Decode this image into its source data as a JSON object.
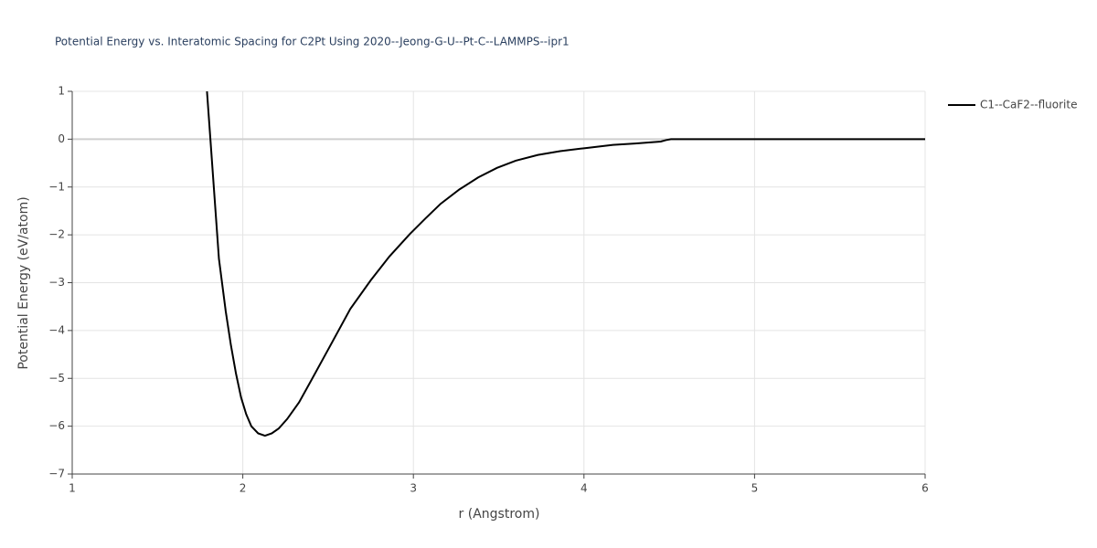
{
  "chart_data": {
    "type": "line",
    "title": "Potential Energy vs. Interatomic Spacing for C2Pt Using 2020--Jeong-G-U--Pt-C--LAMMPS--ipr1",
    "x_label": "r (Angstrom)",
    "y_label": "Potential Energy (eV/atom)",
    "x": [
      1.79,
      1.81,
      1.83,
      1.86,
      1.9,
      1.93,
      1.96,
      1.99,
      2.02,
      2.05,
      2.09,
      2.13,
      2.17,
      2.21,
      2.26,
      2.33,
      2.4,
      2.5,
      2.63,
      2.75,
      2.86,
      2.98,
      3.07,
      3.16,
      3.27,
      3.38,
      3.49,
      3.6,
      3.73,
      3.86,
      4.0,
      4.17,
      4.3,
      4.45,
      4.48,
      4.51,
      5.0,
      6.0
    ],
    "series": [
      {
        "name": "C1--CaF2--fluorite",
        "color": "#000000",
        "values": [
          1.0,
          0.0,
          -1.0,
          -2.5,
          -3.6,
          -4.3,
          -4.9,
          -5.4,
          -5.75,
          -6.0,
          -6.15,
          -6.2,
          -6.15,
          -6.05,
          -5.85,
          -5.5,
          -5.05,
          -4.4,
          -3.55,
          -2.95,
          -2.45,
          -1.98,
          -1.66,
          -1.35,
          -1.05,
          -0.8,
          -0.6,
          -0.45,
          -0.33,
          -0.25,
          -0.19,
          -0.12,
          -0.09,
          -0.05,
          -0.02,
          0,
          0,
          0
        ]
      }
    ],
    "xlim": [
      1,
      6
    ],
    "xticks": [
      1,
      2,
      3,
      4,
      5,
      6
    ],
    "ylim": [
      -7,
      1
    ],
    "yticks": [
      1,
      0,
      {
        "value": -1,
        "label": "−1"
      },
      {
        "value": -2,
        "label": "−2"
      },
      {
        "value": -3,
        "label": "−3"
      },
      {
        "value": -4,
        "label": "−4"
      },
      {
        "value": -5,
        "label": "−5"
      },
      {
        "value": -6,
        "label": "−6"
      },
      {
        "value": -7,
        "label": "−7"
      }
    ],
    "grid": true,
    "legend": "right"
  }
}
